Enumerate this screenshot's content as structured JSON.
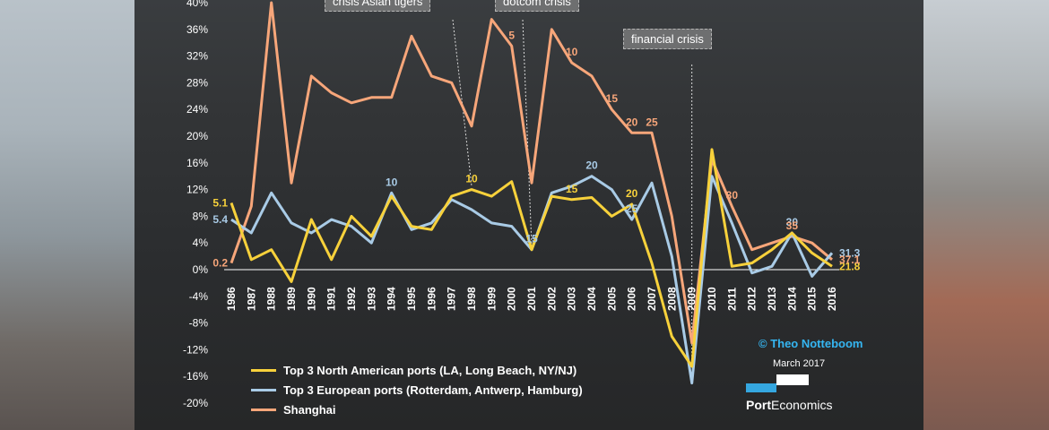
{
  "chart_data": {
    "type": "line",
    "ylim": [
      -20,
      40
    ],
    "yticks": [
      "40%",
      "36%",
      "32%",
      "28%",
      "24%",
      "20%",
      "16%",
      "12%",
      "8%",
      "4%",
      "0%",
      "-4%",
      "-8%",
      "-12%",
      "-16%",
      "-20%"
    ],
    "x": [
      "1986",
      "1987",
      "1988",
      "1989",
      "1990",
      "1991",
      "1992",
      "1993",
      "1994",
      "1995",
      "1996",
      "1997",
      "1998",
      "1999",
      "2000",
      "2001",
      "2002",
      "2003",
      "2004",
      "2005",
      "2006",
      "2007",
      "2008",
      "2009",
      "2010",
      "2011",
      "2012",
      "2013",
      "2014",
      "2015",
      "2016"
    ],
    "series": [
      {
        "name": "Top 3 North American ports (LA, Long Beach, NY/NJ)",
        "color": "#f7d13b",
        "values": [
          10.0,
          1.5,
          3.0,
          -1.8,
          7.5,
          1.5,
          8.0,
          5.0,
          11.0,
          6.5,
          6.0,
          11.0,
          12.0,
          11.0,
          13.2,
          3.0,
          11.0,
          10.5,
          10.8,
          8.0,
          9.8,
          1.0,
          -10.0,
          -14.5,
          18.0,
          0.5,
          1.0,
          3.0,
          5.5,
          2.5,
          0.5
        ]
      },
      {
        "name": "Top 3 European ports (Rotterdam, Antwerp, Hamburg)",
        "color": "#a9cbe6",
        "values": [
          7.5,
          5.5,
          11.5,
          7.0,
          5.5,
          7.5,
          6.5,
          4.0,
          11.5,
          6.0,
          7.0,
          10.5,
          9.0,
          7.0,
          6.5,
          3.0,
          11.5,
          12.5,
          14.0,
          12.0,
          7.5,
          13.0,
          2.0,
          -17.0,
          14.0,
          7.0,
          -0.5,
          0.5,
          5.5,
          -1.0,
          2.5
        ]
      },
      {
        "name": "Shanghai",
        "color": "#f7a67a",
        "values": [
          1.0,
          9.5,
          40.0,
          13.0,
          29.0,
          26.5,
          25.0,
          25.8,
          25.8,
          35.0,
          29.0,
          28.0,
          21.5,
          37.5,
          33.5,
          13.0,
          36.0,
          31.0,
          29.0,
          24.0,
          20.5,
          20.5,
          8.0,
          -11.0,
          16.5,
          9.5,
          3.0,
          4.0,
          5.0,
          4.0,
          1.5
        ]
      }
    ],
    "annotations": {
      "series_0": [
        {
          "year": "1986",
          "text": "5.1"
        },
        {
          "year": "1998",
          "text": "10"
        },
        {
          "year": "2003",
          "text": "15"
        },
        {
          "year": "2006",
          "text": "20"
        },
        {
          "year": "2016",
          "text": "21.8"
        }
      ],
      "series_1": [
        {
          "year": "1986",
          "text": "5.4"
        },
        {
          "year": "1994",
          "text": "10"
        },
        {
          "year": "2001",
          "text": "15"
        },
        {
          "year": "2004",
          "text": "20"
        },
        {
          "year": "2006",
          "text": "25"
        },
        {
          "year": "2014",
          "text": "30"
        },
        {
          "year": "2016",
          "text": "31.3"
        }
      ],
      "series_2": [
        {
          "year": "1986",
          "text": "0.2"
        },
        {
          "year": "2000",
          "text": "5"
        },
        {
          "year": "2003",
          "text": "10"
        },
        {
          "year": "2005",
          "text": "15"
        },
        {
          "year": "2006",
          "text": "20"
        },
        {
          "year": "2007",
          "text": "25"
        },
        {
          "year": "2011",
          "text": "30"
        },
        {
          "year": "2014",
          "text": "35"
        },
        {
          "year": "2016",
          "text": "37.1"
        }
      ]
    },
    "crisis_labels": [
      {
        "text": "crisis Asian tigers",
        "year": "1998"
      },
      {
        "text": "dotcom crisis",
        "year": "2001"
      },
      {
        "text": "financial crisis",
        "year": "2009"
      }
    ]
  },
  "credit": "© Theo Notteboom",
  "date": "March 2017",
  "brand": {
    "bold": "Port",
    "regular": "Economics"
  }
}
